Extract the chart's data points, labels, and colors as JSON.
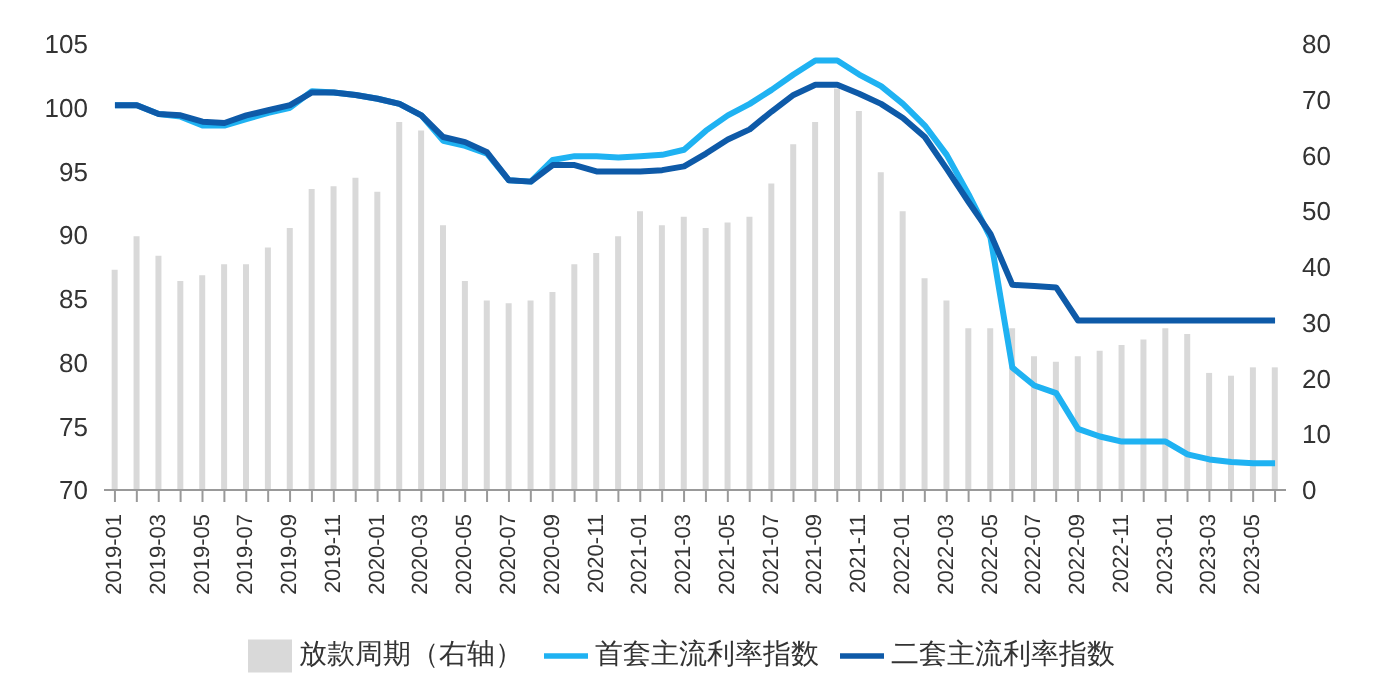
{
  "chart_data": {
    "type": "line",
    "categories": [
      "2019-01",
      null,
      "2019-03",
      null,
      "2019-05",
      null,
      "2019-07",
      null,
      "2019-09",
      null,
      "2019-11",
      null,
      "2020-01",
      null,
      "2020-03",
      null,
      "2020-05",
      null,
      "2020-07",
      null,
      "2020-09",
      null,
      "2020-11",
      null,
      "2021-01",
      null,
      "2021-03",
      null,
      "2021-05",
      null,
      "2021-07",
      null,
      "2021-09",
      null,
      "2021-11",
      null,
      "2022-01",
      null,
      "2022-03",
      null,
      "2022-05",
      null,
      "2022-07",
      null,
      "2022-09",
      null,
      "2022-11",
      null,
      "2023-01",
      null,
      "2023-03",
      null,
      "2023-05",
      null
    ],
    "series": [
      {
        "name": "放款周期（右轴）",
        "type": "bar",
        "axis": "y2",
        "color": "#d9d9d9",
        "values": [
          39.5,
          45.5,
          42,
          37.5,
          38.5,
          40.5,
          40.5,
          43.5,
          47,
          54,
          54.5,
          56,
          53.5,
          66,
          64.5,
          47.5,
          37.5,
          34,
          33.5,
          34,
          35.5,
          40.5,
          42.5,
          45.5,
          50,
          47.5,
          49,
          47,
          48,
          49,
          55,
          62,
          66,
          72,
          68,
          57,
          50,
          38,
          34,
          29,
          29,
          29,
          24,
          23,
          24,
          25,
          26,
          27,
          29,
          28,
          21,
          20.5,
          22,
          22
        ]
      },
      {
        "name": "首套主流利率指数",
        "color": "#1fb2f2",
        "values": [
          100.2,
          100.2,
          99.5,
          99.3,
          98.6,
          98.6,
          99.1,
          99.6,
          100,
          101.3,
          101.2,
          101,
          100.7,
          100.3,
          99.4,
          97.4,
          97,
          96.4,
          94.3,
          94.2,
          95.9,
          96.2,
          96.2,
          96.1,
          96.2,
          96.3,
          96.7,
          98.2,
          99.4,
          100.3,
          101.4,
          102.6,
          103.7,
          103.7,
          102.6,
          101.7,
          100.3,
          98.6,
          96.3,
          93.2,
          89.8,
          79.6,
          78.2,
          77.6,
          74.8,
          74.2,
          73.8,
          73.8,
          73.8,
          72.8,
          72.4,
          72.2,
          72.1,
          72.1
        ]
      },
      {
        "name": "二套主流利率指数",
        "color": "#0e5aa8",
        "values": [
          100.2,
          100.2,
          99.5,
          99.4,
          98.9,
          98.8,
          99.4,
          99.8,
          100.2,
          101.2,
          101.2,
          101,
          100.7,
          100.3,
          99.4,
          97.7,
          97.3,
          96.5,
          94.3,
          94.2,
          95.5,
          95.5,
          95,
          95,
          95,
          95.1,
          95.4,
          96.4,
          97.5,
          98.3,
          99.7,
          101,
          101.8,
          101.8,
          101.1,
          100.3,
          99.2,
          97.7,
          95.2,
          92.6,
          90.1,
          86.1,
          86,
          85.9,
          83.3,
          83.3,
          83.3,
          83.3,
          83.3,
          83.3,
          83.3,
          83.3,
          83.3,
          83.3
        ]
      }
    ],
    "ylim": [
      70,
      105
    ],
    "yticks": [
      70,
      75,
      80,
      85,
      90,
      95,
      100,
      105
    ],
    "y2lim": [
      0,
      80
    ],
    "y2ticks": [
      0,
      10,
      20,
      30,
      40,
      50,
      60,
      70,
      80
    ],
    "legend": "bottom",
    "grid": false
  }
}
